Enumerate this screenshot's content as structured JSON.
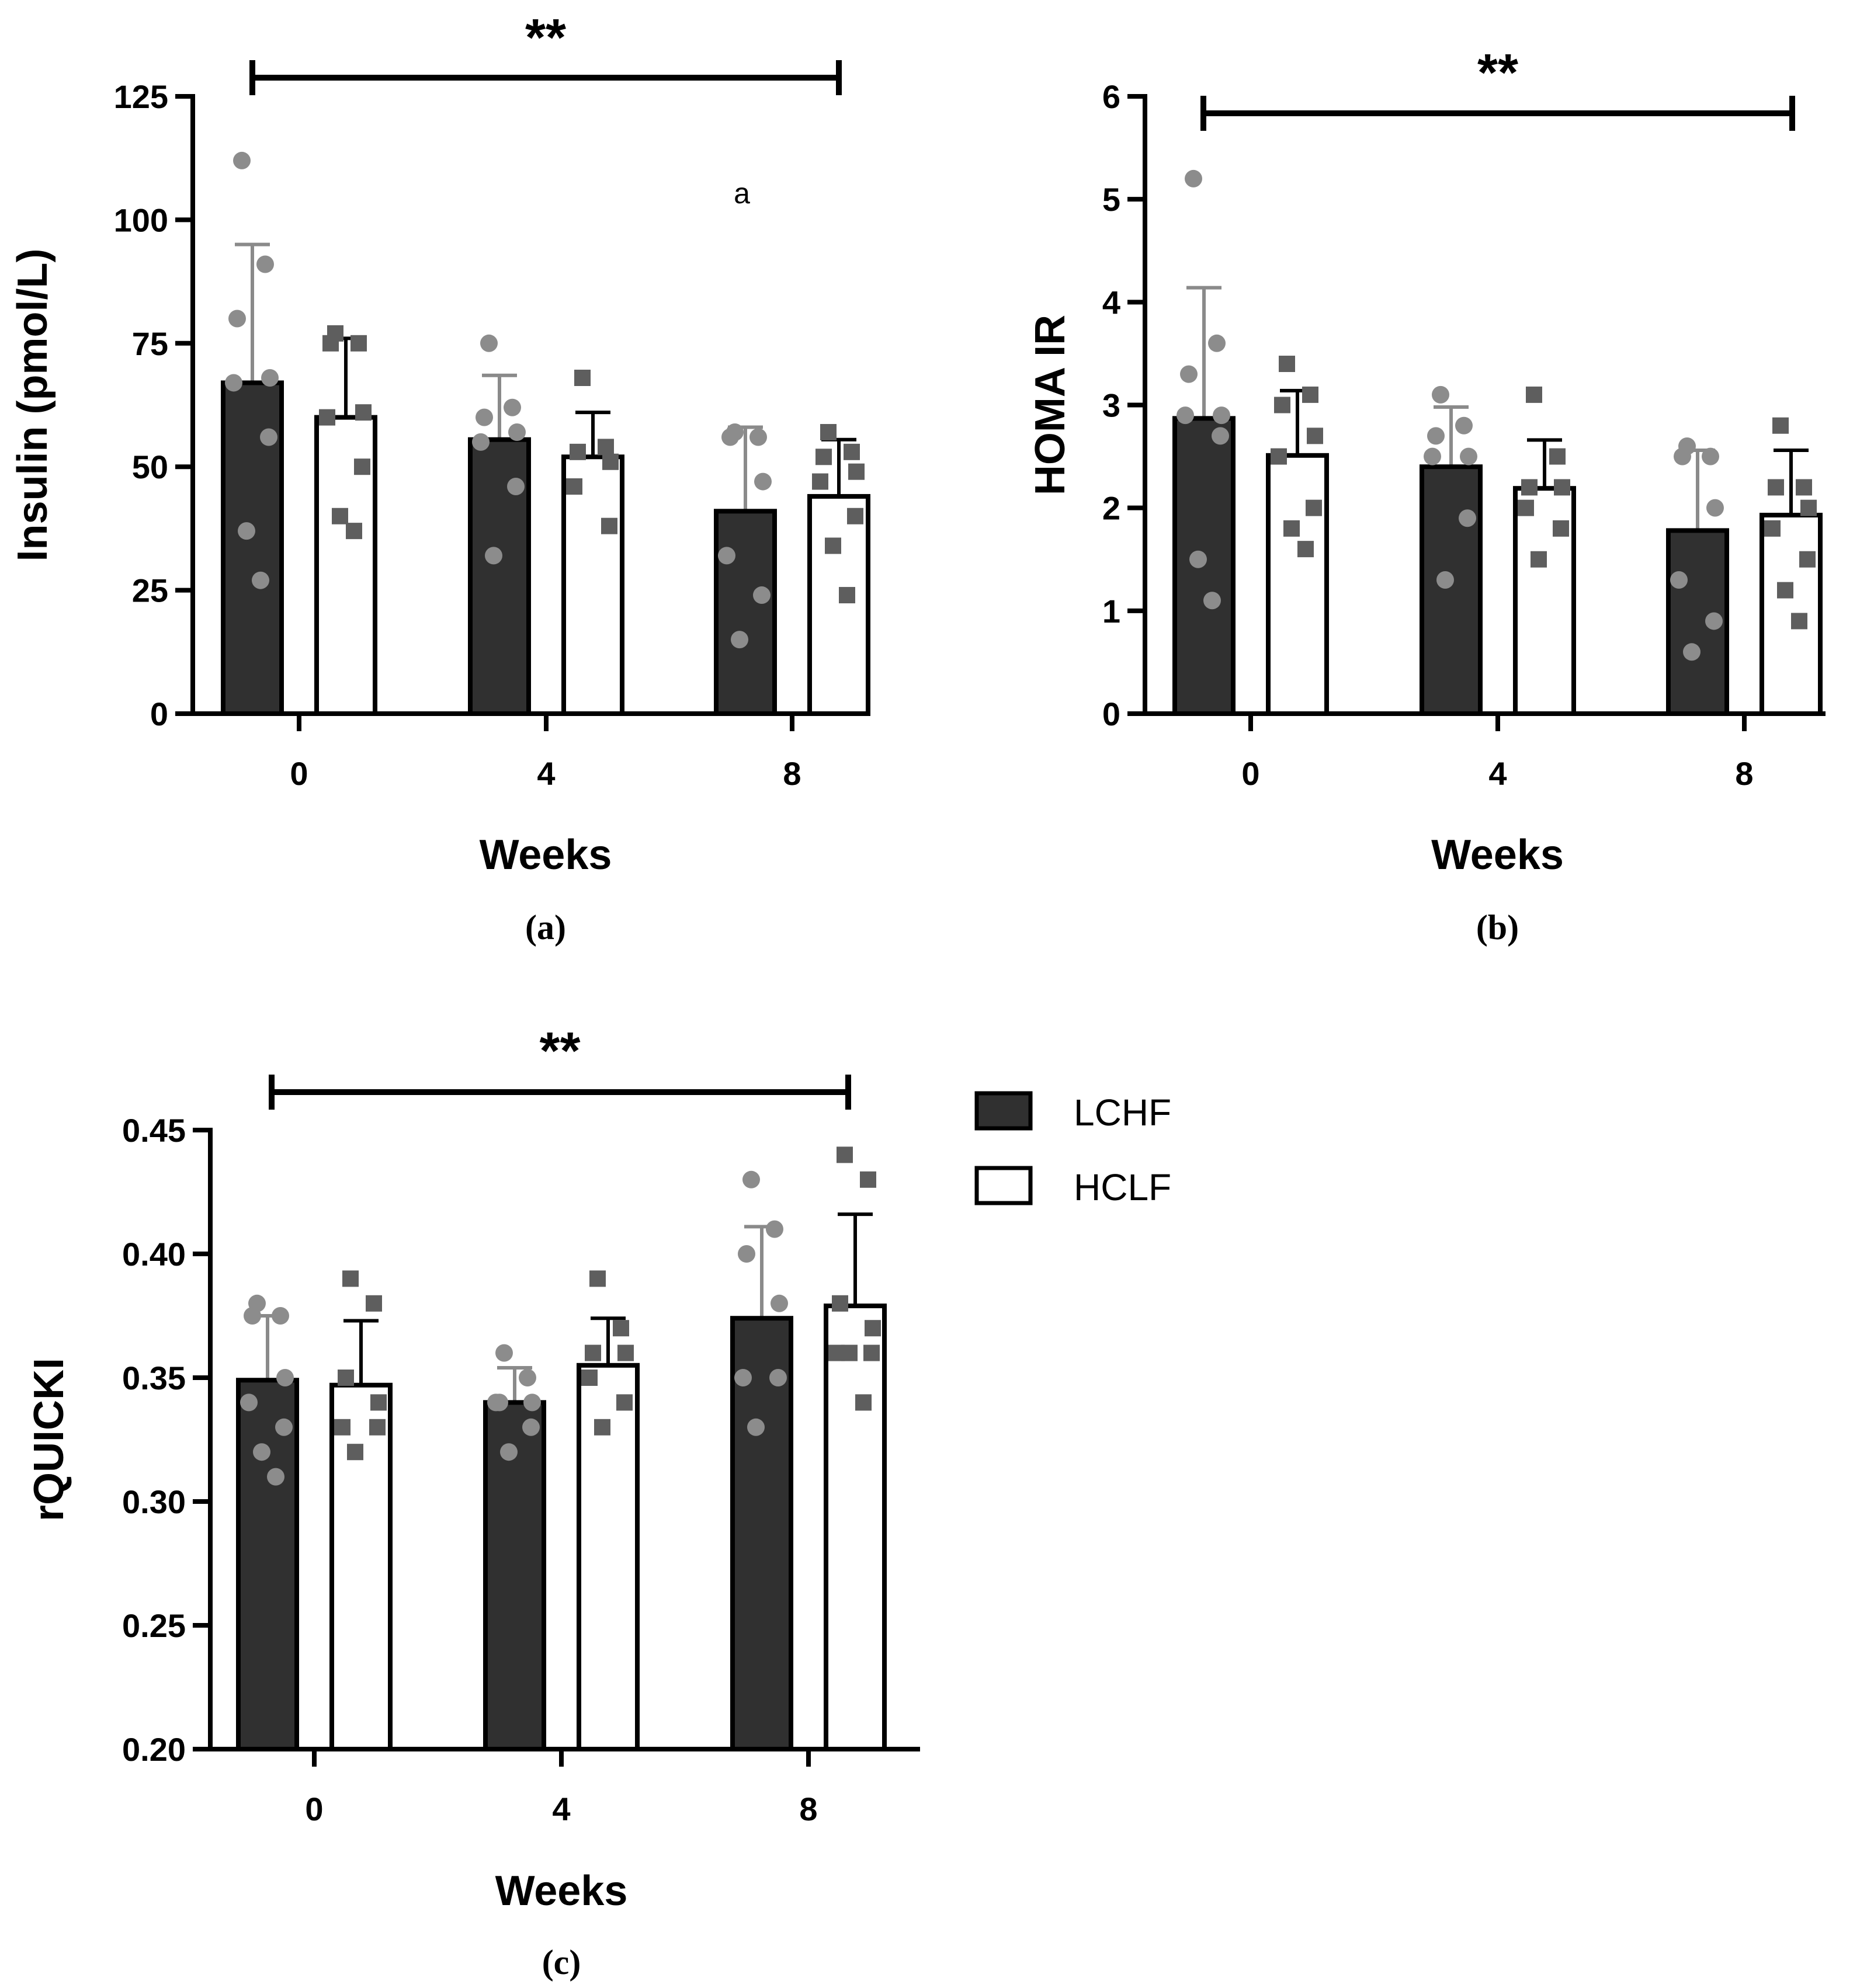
{
  "colors": {
    "lchf_fill": "#303030",
    "hclf_fill": "#ffffff",
    "bar_stroke": "#000000",
    "lchf_point": "#8c8c8c",
    "hclf_point": "#5e5e5e",
    "lchf_error": "#8a8a8a",
    "hclf_error": "#000000"
  },
  "legend": {
    "items": [
      {
        "label": "LCHF",
        "marker": "filled-square"
      },
      {
        "label": "HCLF",
        "marker": "open-square"
      }
    ]
  },
  "chart_data": [
    {
      "id": "a",
      "type": "bar",
      "caption": "(a)",
      "xlabel": "Weeks",
      "ylabel": "Insulin (pmol/L)",
      "ylim": [
        0,
        125
      ],
      "yticks": [
        0,
        25,
        50,
        75,
        100,
        125
      ],
      "ytick_labels": [
        "0",
        "25",
        "50",
        "75",
        "100",
        "125"
      ],
      "categories": [
        "0",
        "4",
        "8"
      ],
      "series": [
        {
          "name": "LCHF",
          "values": [
            67,
            55.5,
            41
          ],
          "sd": [
            28,
            13,
            17
          ],
          "points": [
            [
              112,
              91,
              80,
              68,
              67,
              56,
              37,
              27
            ],
            [
              75,
              62,
              60,
              57,
              55,
              46,
              32
            ],
            [
              57,
              56,
              56,
              47,
              32,
              24,
              15
            ]
          ]
        },
        {
          "name": "HCLF",
          "values": [
            60,
            52,
            44
          ],
          "sd": [
            16,
            9,
            11.5
          ],
          "points": [
            [
              77,
              75,
              75,
              61,
              60,
              50,
              40,
              37
            ],
            [
              68,
              54,
              53,
              51,
              46,
              38
            ],
            [
              57,
              53,
              52,
              49,
              47,
              40,
              34,
              24
            ]
          ]
        }
      ],
      "significance": {
        "label": "**",
        "from": "0",
        "to": "8"
      },
      "annotation": "a"
    },
    {
      "id": "b",
      "type": "bar",
      "caption": "(b)",
      "xlabel": "Weeks",
      "ylabel": "HOMA IR",
      "ylim": [
        0,
        6
      ],
      "yticks": [
        0,
        1,
        2,
        3,
        4,
        5,
        6
      ],
      "ytick_labels": [
        "0",
        "1",
        "2",
        "3",
        "4",
        "5",
        "6"
      ],
      "categories": [
        "0",
        "4",
        "8"
      ],
      "series": [
        {
          "name": "LCHF",
          "values": [
            2.87,
            2.4,
            1.78
          ],
          "sd": [
            1.27,
            0.58,
            0.78
          ],
          "points": [
            [
              5.2,
              3.6,
              3.3,
              2.9,
              2.9,
              2.7,
              1.5,
              1.1
            ],
            [
              3.1,
              2.8,
              2.7,
              2.5,
              2.5,
              1.9,
              1.3
            ],
            [
              2.6,
              2.5,
              2.5,
              2.0,
              1.3,
              0.9,
              0.6
            ]
          ]
        },
        {
          "name": "HCLF",
          "values": [
            2.51,
            2.19,
            1.93
          ],
          "sd": [
            0.63,
            0.47,
            0.63
          ],
          "points": [
            [
              3.4,
              3.1,
              3.0,
              2.7,
              2.5,
              2.0,
              1.8,
              1.6
            ],
            [
              3.1,
              2.5,
              2.2,
              2.2,
              2.0,
              1.8,
              1.5
            ],
            [
              2.8,
              2.2,
              2.2,
              2.0,
              1.8,
              1.5,
              1.2,
              0.9
            ]
          ]
        }
      ],
      "significance": {
        "label": "**",
        "from": "0",
        "to": "8"
      }
    },
    {
      "id": "c",
      "type": "bar",
      "caption": "(c)",
      "xlabel": "Weeks",
      "ylabel": "rQUICKI",
      "ylim": [
        0.2,
        0.45
      ],
      "yticks": [
        0.2,
        0.25,
        0.3,
        0.35,
        0.4,
        0.45
      ],
      "ytick_labels": [
        "0.20",
        "0.25",
        "0.30",
        "0.35",
        "0.40",
        "0.45"
      ],
      "categories": [
        "0",
        "4",
        "8"
      ],
      "series": [
        {
          "name": "LCHF",
          "values": [
            0.349,
            0.34,
            0.374
          ],
          "sd": [
            0.026,
            0.014,
            0.037
          ],
          "points": [
            [
              0.38,
              0.375,
              0.375,
              0.35,
              0.34,
              0.33,
              0.32,
              0.31
            ],
            [
              0.36,
              0.35,
              0.34,
              0.34,
              0.34,
              0.33,
              0.32
            ],
            [
              0.43,
              0.41,
              0.4,
              0.38,
              0.35,
              0.35,
              0.33
            ]
          ]
        },
        {
          "name": "HCLF",
          "values": [
            0.347,
            0.355,
            0.379
          ],
          "sd": [
            0.026,
            0.019,
            0.037
          ],
          "points": [
            [
              0.39,
              0.38,
              0.35,
              0.34,
              0.33,
              0.33,
              0.32
            ],
            [
              0.39,
              0.37,
              0.36,
              0.36,
              0.35,
              0.34,
              0.33
            ],
            [
              0.44,
              0.43,
              0.38,
              0.37,
              0.36,
              0.36,
              0.36,
              0.34
            ]
          ]
        }
      ],
      "significance": {
        "label": "**",
        "from": "0",
        "to": "8"
      }
    }
  ]
}
